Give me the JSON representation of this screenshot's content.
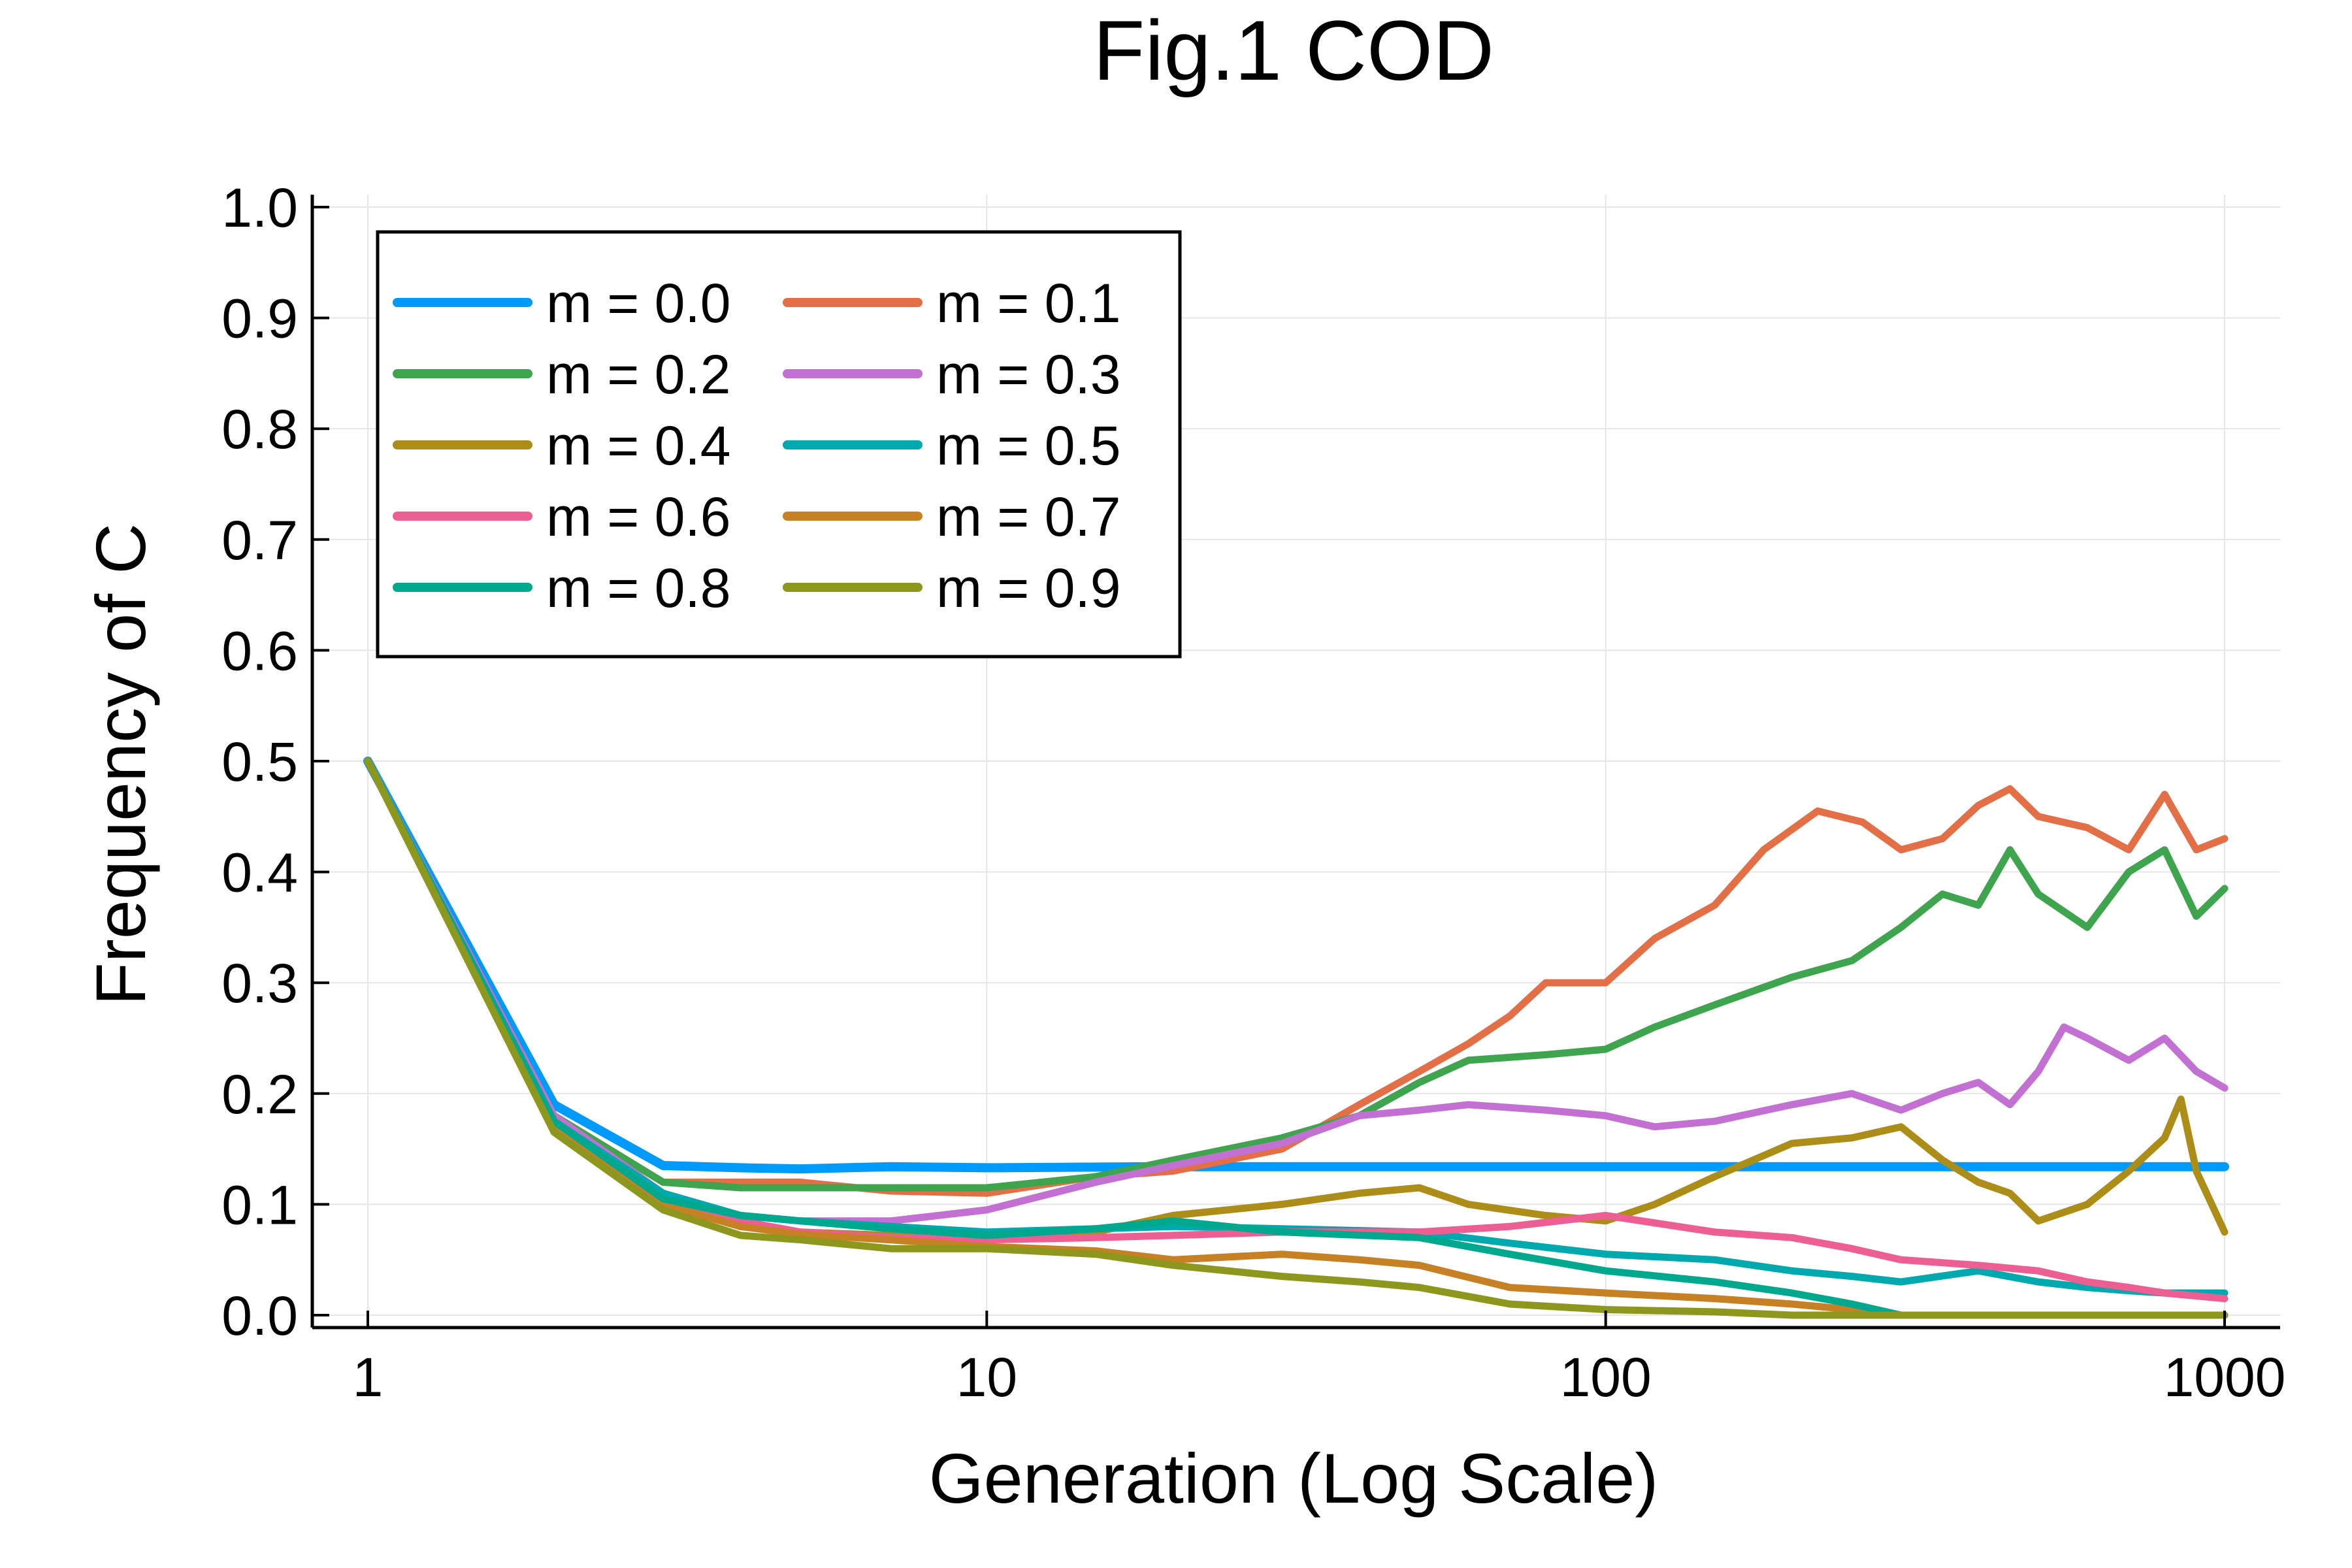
{
  "chart_data": {
    "type": "line",
    "title": "Fig.1 COD",
    "xlabel": "Generation (Log Scale)",
    "ylabel": "Frequency of C",
    "xscale": "log",
    "xlim": [
      1,
      1000
    ],
    "ylim": [
      0,
      1.0
    ],
    "xticks": [
      1,
      10,
      100,
      1000
    ],
    "xtick_labels": [
      "1",
      "10",
      "100",
      "1000"
    ],
    "yticks": [
      0.0,
      0.1,
      0.2,
      0.3,
      0.4,
      0.5,
      0.6,
      0.7,
      0.8,
      0.9,
      1.0
    ],
    "ytick_labels": [
      "0.0",
      "0.1",
      "0.2",
      "0.3",
      "0.4",
      "0.5",
      "0.6",
      "0.7",
      "0.8",
      "0.9",
      "1.0"
    ],
    "grid": true,
    "legend_position": "top-left",
    "legend_columns": 2,
    "series": [
      {
        "name": "m = 0.0",
        "color": "#009AFA",
        "points": [
          [
            1,
            0.5
          ],
          [
            2,
            0.19
          ],
          [
            3,
            0.135
          ],
          [
            4,
            0.133
          ],
          [
            5,
            0.132
          ],
          [
            7,
            0.134
          ],
          [
            10,
            0.133
          ],
          [
            20,
            0.134
          ],
          [
            50,
            0.134
          ],
          [
            100,
            0.134
          ],
          [
            200,
            0.134
          ],
          [
            500,
            0.134
          ],
          [
            1000,
            0.134
          ]
        ]
      },
      {
        "name": "m = 0.1",
        "color": "#E36F47",
        "points": [
          [
            1,
            0.5
          ],
          [
            2,
            0.18
          ],
          [
            3,
            0.12
          ],
          [
            4,
            0.12
          ],
          [
            5,
            0.12
          ],
          [
            7,
            0.112
          ],
          [
            10,
            0.11
          ],
          [
            15,
            0.125
          ],
          [
            20,
            0.13
          ],
          [
            30,
            0.15
          ],
          [
            40,
            0.19
          ],
          [
            50,
            0.22
          ],
          [
            60,
            0.245
          ],
          [
            70,
            0.27
          ],
          [
            80,
            0.3
          ],
          [
            100,
            0.3
          ],
          [
            120,
            0.34
          ],
          [
            150,
            0.37
          ],
          [
            180,
            0.42
          ],
          [
            220,
            0.455
          ],
          [
            260,
            0.445
          ],
          [
            300,
            0.42
          ],
          [
            350,
            0.43
          ],
          [
            400,
            0.46
          ],
          [
            450,
            0.475
          ],
          [
            500,
            0.45
          ],
          [
            600,
            0.44
          ],
          [
            700,
            0.42
          ],
          [
            800,
            0.47
          ],
          [
            900,
            0.42
          ],
          [
            1000,
            0.43
          ]
        ]
      },
      {
        "name": "m = 0.2",
        "color": "#3EA44E",
        "points": [
          [
            1,
            0.5
          ],
          [
            2,
            0.18
          ],
          [
            3,
            0.12
          ],
          [
            4,
            0.115
          ],
          [
            5,
            0.115
          ],
          [
            7,
            0.115
          ],
          [
            10,
            0.115
          ],
          [
            15,
            0.125
          ],
          [
            20,
            0.14
          ],
          [
            30,
            0.16
          ],
          [
            40,
            0.18
          ],
          [
            50,
            0.21
          ],
          [
            60,
            0.23
          ],
          [
            80,
            0.235
          ],
          [
            100,
            0.24
          ],
          [
            120,
            0.26
          ],
          [
            150,
            0.28
          ],
          [
            200,
            0.305
          ],
          [
            250,
            0.32
          ],
          [
            300,
            0.35
          ],
          [
            350,
            0.38
          ],
          [
            400,
            0.37
          ],
          [
            450,
            0.42
          ],
          [
            500,
            0.38
          ],
          [
            600,
            0.35
          ],
          [
            700,
            0.4
          ],
          [
            800,
            0.42
          ],
          [
            900,
            0.36
          ],
          [
            1000,
            0.385
          ]
        ]
      },
      {
        "name": "m = 0.3",
        "color": "#C271D2",
        "points": [
          [
            1,
            0.5
          ],
          [
            2,
            0.18
          ],
          [
            3,
            0.11
          ],
          [
            4,
            0.09
          ],
          [
            5,
            0.085
          ],
          [
            7,
            0.085
          ],
          [
            10,
            0.095
          ],
          [
            15,
            0.12
          ],
          [
            20,
            0.135
          ],
          [
            30,
            0.155
          ],
          [
            40,
            0.18
          ],
          [
            50,
            0.185
          ],
          [
            60,
            0.19
          ],
          [
            80,
            0.185
          ],
          [
            100,
            0.18
          ],
          [
            120,
            0.17
          ],
          [
            150,
            0.175
          ],
          [
            200,
            0.19
          ],
          [
            250,
            0.2
          ],
          [
            300,
            0.185
          ],
          [
            350,
            0.2
          ],
          [
            400,
            0.21
          ],
          [
            450,
            0.19
          ],
          [
            500,
            0.22
          ],
          [
            550,
            0.26
          ],
          [
            600,
            0.25
          ],
          [
            700,
            0.23
          ],
          [
            800,
            0.25
          ],
          [
            900,
            0.22
          ],
          [
            1000,
            0.205
          ]
        ]
      },
      {
        "name": "m = 0.4",
        "color": "#AC8D18",
        "points": [
          [
            1,
            0.5
          ],
          [
            2,
            0.17
          ],
          [
            3,
            0.1
          ],
          [
            4,
            0.08
          ],
          [
            5,
            0.075
          ],
          [
            7,
            0.072
          ],
          [
            10,
            0.07
          ],
          [
            15,
            0.075
          ],
          [
            20,
            0.09
          ],
          [
            30,
            0.1
          ],
          [
            40,
            0.11
          ],
          [
            50,
            0.115
          ],
          [
            60,
            0.1
          ],
          [
            80,
            0.09
          ],
          [
            100,
            0.085
          ],
          [
            120,
            0.1
          ],
          [
            150,
            0.125
          ],
          [
            200,
            0.155
          ],
          [
            250,
            0.16
          ],
          [
            300,
            0.17
          ],
          [
            350,
            0.14
          ],
          [
            400,
            0.12
          ],
          [
            450,
            0.11
          ],
          [
            500,
            0.085
          ],
          [
            600,
            0.1
          ],
          [
            700,
            0.13
          ],
          [
            800,
            0.16
          ],
          [
            850,
            0.195
          ],
          [
            900,
            0.13
          ],
          [
            1000,
            0.075
          ]
        ]
      },
      {
        "name": "m = 0.5",
        "color": "#00A9AD",
        "points": [
          [
            1,
            0.5
          ],
          [
            2,
            0.175
          ],
          [
            3,
            0.11
          ],
          [
            4,
            0.09
          ],
          [
            5,
            0.085
          ],
          [
            7,
            0.08
          ],
          [
            10,
            0.075
          ],
          [
            15,
            0.078
          ],
          [
            20,
            0.08
          ],
          [
            30,
            0.078
          ],
          [
            50,
            0.075
          ],
          [
            70,
            0.065
          ],
          [
            100,
            0.055
          ],
          [
            150,
            0.05
          ],
          [
            200,
            0.04
          ],
          [
            250,
            0.035
          ],
          [
            300,
            0.03
          ],
          [
            400,
            0.04
          ],
          [
            500,
            0.03
          ],
          [
            600,
            0.025
          ],
          [
            700,
            0.022
          ],
          [
            800,
            0.02
          ],
          [
            1000,
            0.02
          ]
        ]
      },
      {
        "name": "m = 0.6",
        "color": "#ED5E93",
        "points": [
          [
            1,
            0.5
          ],
          [
            2,
            0.175
          ],
          [
            3,
            0.105
          ],
          [
            4,
            0.085
          ],
          [
            5,
            0.075
          ],
          [
            7,
            0.07
          ],
          [
            10,
            0.068
          ],
          [
            15,
            0.07
          ],
          [
            20,
            0.072
          ],
          [
            30,
            0.075
          ],
          [
            50,
            0.075
          ],
          [
            70,
            0.08
          ],
          [
            100,
            0.09
          ],
          [
            150,
            0.075
          ],
          [
            200,
            0.07
          ],
          [
            250,
            0.06
          ],
          [
            300,
            0.05
          ],
          [
            400,
            0.045
          ],
          [
            500,
            0.04
          ],
          [
            600,
            0.03
          ],
          [
            700,
            0.025
          ],
          [
            800,
            0.02
          ],
          [
            1000,
            0.015
          ]
        ]
      },
      {
        "name": "m = 0.7",
        "color": "#C68125",
        "points": [
          [
            1,
            0.5
          ],
          [
            2,
            0.17
          ],
          [
            3,
            0.1
          ],
          [
            4,
            0.08
          ],
          [
            5,
            0.073
          ],
          [
            7,
            0.068
          ],
          [
            10,
            0.062
          ],
          [
            15,
            0.058
          ],
          [
            20,
            0.05
          ],
          [
            30,
            0.055
          ],
          [
            40,
            0.05
          ],
          [
            50,
            0.045
          ],
          [
            70,
            0.025
          ],
          [
            100,
            0.02
          ],
          [
            150,
            0.015
          ],
          [
            200,
            0.01
          ],
          [
            250,
            0.005
          ],
          [
            300,
            0
          ],
          [
            500,
            0
          ],
          [
            1000,
            0
          ]
        ]
      },
      {
        "name": "m = 0.8",
        "color": "#00A98D",
        "points": [
          [
            1,
            0.5
          ],
          [
            2,
            0.175
          ],
          [
            3,
            0.105
          ],
          [
            4,
            0.09
          ],
          [
            5,
            0.085
          ],
          [
            7,
            0.078
          ],
          [
            10,
            0.072
          ],
          [
            15,
            0.078
          ],
          [
            20,
            0.085
          ],
          [
            30,
            0.075
          ],
          [
            50,
            0.07
          ],
          [
            70,
            0.055
          ],
          [
            100,
            0.04
          ],
          [
            150,
            0.03
          ],
          [
            200,
            0.02
          ],
          [
            250,
            0.01
          ],
          [
            300,
            0
          ],
          [
            500,
            0
          ],
          [
            1000,
            0
          ]
        ]
      },
      {
        "name": "m = 0.9",
        "color": "#8E971D",
        "points": [
          [
            1,
            0.5
          ],
          [
            2,
            0.165
          ],
          [
            3,
            0.095
          ],
          [
            4,
            0.072
          ],
          [
            5,
            0.068
          ],
          [
            7,
            0.06
          ],
          [
            10,
            0.06
          ],
          [
            15,
            0.055
          ],
          [
            20,
            0.045
          ],
          [
            30,
            0.035
          ],
          [
            40,
            0.03
          ],
          [
            50,
            0.025
          ],
          [
            70,
            0.01
          ],
          [
            100,
            0.005
          ],
          [
            150,
            0.003
          ],
          [
            200,
            0
          ],
          [
            500,
            0
          ],
          [
            1000,
            0
          ]
        ]
      }
    ]
  }
}
